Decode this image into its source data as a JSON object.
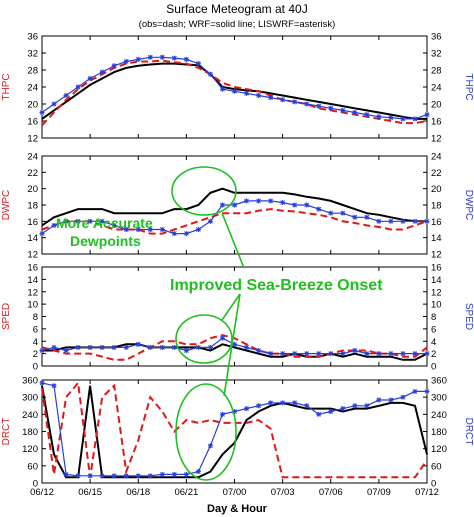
{
  "chart_data": {
    "type": "line",
    "title": "Surface Meteogram at 40J",
    "subtitle": "(obs=dash; WRF=solid line; LISWRF=asterisk)",
    "xlabel": "Day & Hour",
    "x_ticks": [
      "06/12",
      "06/15",
      "06/18",
      "06/21",
      "07/00",
      "07/03",
      "07/06",
      "07/09",
      "07/12"
    ],
    "x_range_hours": [
      0,
      72
    ],
    "series_styles": {
      "obs": {
        "color": "#e01818",
        "style": "dash"
      },
      "wrf": {
        "color": "#000000",
        "style": "solid"
      },
      "liswrf": {
        "color": "#2a3fd6",
        "style": "asterisk"
      }
    },
    "panels": [
      {
        "ylabel": "THPC",
        "ylim": [
          12,
          36
        ],
        "yticks": [
          12,
          16,
          20,
          24,
          28,
          32,
          36
        ],
        "obs": [
          15,
          18,
          21,
          23.5,
          25.5,
          27,
          28.5,
          29.5,
          30,
          30,
          30.2,
          29.8,
          29.5,
          28.5,
          27,
          25,
          24,
          23.5,
          23,
          22,
          21,
          20.5,
          20,
          19,
          18.5,
          18,
          17.5,
          17,
          16.5,
          16,
          15.5,
          15.5,
          16
        ],
        "wrf": [
          16.5,
          18.5,
          20.5,
          22.5,
          24.5,
          26,
          27.5,
          28.5,
          29,
          29.3,
          29.5,
          29.5,
          29.3,
          29.1,
          27,
          24,
          23.5,
          23.2,
          23,
          22.5,
          22,
          21.5,
          21,
          20.5,
          20,
          19.5,
          19,
          18.5,
          18,
          17.5,
          17,
          16.5,
          16.5
        ],
        "liswrf": [
          18,
          20,
          22,
          24,
          26,
          27.5,
          29,
          30,
          30.5,
          31,
          31,
          30.8,
          30.5,
          29.5,
          27,
          23.5,
          23,
          22.5,
          22,
          21.5,
          21,
          20.5,
          20,
          19.5,
          19,
          18.5,
          18,
          17.5,
          17,
          16.8,
          16.5,
          16.5,
          17.5
        ]
      },
      {
        "ylabel": "DWPC",
        "ylim": [
          12,
          24
        ],
        "yticks": [
          12,
          14,
          16,
          18,
          20,
          22,
          24
        ],
        "obs": [
          15,
          15.5,
          16,
          16,
          16,
          15.5,
          15,
          15,
          15,
          14.5,
          14.5,
          15,
          15.5,
          16,
          16.5,
          17,
          17,
          17,
          17.3,
          17.5,
          17.3,
          17.2,
          17,
          16.8,
          16.5,
          16,
          15.8,
          15.5,
          15.3,
          15,
          15,
          15.5,
          16
        ],
        "wrf": [
          15.5,
          16.5,
          17,
          17.5,
          17.5,
          17.5,
          17,
          17,
          17,
          17,
          17,
          17.5,
          17.5,
          18,
          19.5,
          20,
          19.5,
          19.5,
          19.5,
          19.5,
          19.5,
          19.3,
          19,
          18.8,
          18.5,
          18,
          17.5,
          17,
          16.8,
          16.5,
          16.2,
          16,
          16
        ],
        "liswrf": [
          14.5,
          15.5,
          16,
          16,
          16,
          16,
          15.5,
          15,
          15,
          15,
          15,
          14.5,
          14.5,
          15,
          16,
          18,
          18,
          18.5,
          18.5,
          18.5,
          18.3,
          18,
          18,
          17.5,
          17,
          17,
          16.5,
          16.5,
          16,
          16,
          16,
          16,
          16
        ]
      },
      {
        "ylabel": "SPED",
        "ylim": [
          0,
          16
        ],
        "yticks": [
          0,
          2,
          4,
          6,
          8,
          10,
          12,
          14,
          16
        ],
        "obs": [
          3,
          2.5,
          2,
          2,
          2,
          1.5,
          1,
          1,
          2,
          3,
          4,
          4,
          3.5,
          3.5,
          4.5,
          5,
          4.5,
          3.5,
          2.5,
          2,
          2,
          1.5,
          1.5,
          1.5,
          2,
          2.5,
          2.5,
          2.5,
          2,
          2,
          1.5,
          1.5,
          3
        ],
        "wrf": [
          2.5,
          2.5,
          3,
          3,
          3,
          3,
          3,
          3.5,
          3.5,
          3,
          3,
          3,
          3,
          3,
          2.5,
          3.5,
          3,
          2.5,
          2,
          1.5,
          1.5,
          2,
          1.5,
          1.5,
          2,
          1.5,
          2,
          1.5,
          1.5,
          1.5,
          1,
          1,
          2
        ],
        "liswrf": [
          2.5,
          3,
          2.5,
          3,
          3,
          3,
          3,
          3,
          3.5,
          3,
          3,
          3,
          2.5,
          3,
          3,
          4.5,
          3.5,
          3,
          2.5,
          2,
          2,
          2,
          2,
          2,
          2,
          2,
          2.5,
          2,
          2,
          2,
          2,
          2,
          2
        ]
      },
      {
        "ylabel": "DRCT",
        "ylim": [
          0,
          360
        ],
        "yticks": [
          0,
          60,
          120,
          180,
          240,
          300,
          360
        ],
        "obs": [
          330,
          30,
          300,
          350,
          20,
          300,
          340,
          40,
          150,
          300,
          250,
          180,
          220,
          210,
          220,
          210,
          210,
          210,
          220,
          190,
          20,
          20,
          20,
          20,
          20,
          20,
          20,
          20,
          20,
          20,
          20,
          20,
          80
        ],
        "wrf": [
          340,
          100,
          20,
          20,
          340,
          20,
          20,
          20,
          20,
          20,
          20,
          20,
          20,
          20,
          40,
          100,
          140,
          220,
          250,
          270,
          280,
          270,
          260,
          260,
          260,
          250,
          260,
          260,
          270,
          280,
          280,
          270,
          100
        ],
        "liswrf": [
          350,
          340,
          30,
          25,
          25,
          25,
          25,
          25,
          25,
          25,
          30,
          30,
          30,
          40,
          130,
          240,
          250,
          260,
          270,
          280,
          280,
          280,
          270,
          240,
          250,
          260,
          270,
          270,
          290,
          290,
          300,
          320,
          320
        ]
      }
    ],
    "annotations": [
      {
        "text": "More Accurate",
        "size": "medium"
      },
      {
        "text": "Dewpoints",
        "size": "medium"
      },
      {
        "text": "Improved Sea-Breeze Onset",
        "size": "large"
      }
    ]
  }
}
